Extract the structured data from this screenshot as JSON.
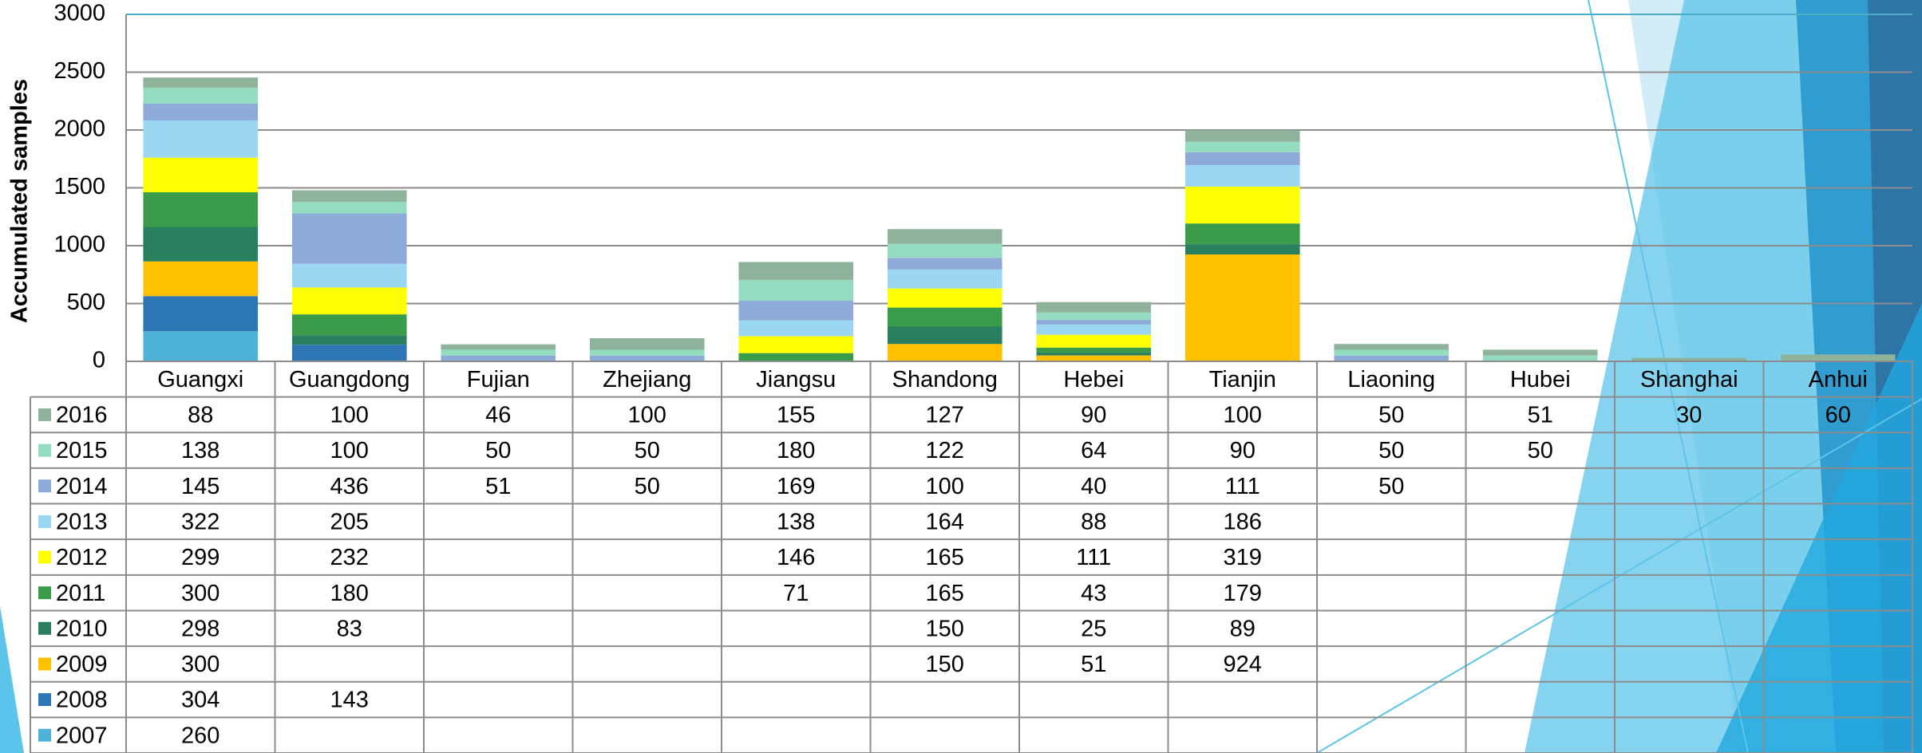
{
  "chart_data": {
    "type": "bar",
    "stacked": true,
    "y_label": "Accumulated samples",
    "categories": [
      "Guangxi",
      "Guangdong",
      "Fujian",
      "Zhejiang",
      "Jiangsu",
      "Shandong",
      "Hebei",
      "Tianjin",
      "Liaoning",
      "Hubei",
      "Shanghai",
      "Anhui"
    ],
    "series": [
      {
        "name": "2016",
        "color": "#8fb39a",
        "values": [
          88,
          100,
          46,
          100,
          155,
          127,
          90,
          100,
          50,
          51,
          30,
          60
        ]
      },
      {
        "name": "2015",
        "color": "#93dcc0",
        "values": [
          138,
          100,
          50,
          50,
          180,
          122,
          64,
          90,
          50,
          50,
          null,
          null
        ]
      },
      {
        "name": "2014",
        "color": "#8eaad8",
        "values": [
          145,
          436,
          51,
          50,
          169,
          100,
          40,
          111,
          50,
          null,
          null,
          null
        ]
      },
      {
        "name": "2013",
        "color": "#9bd7f2",
        "values": [
          322,
          205,
          null,
          null,
          138,
          164,
          88,
          186,
          null,
          null,
          null,
          null
        ]
      },
      {
        "name": "2012",
        "color": "#ffff00",
        "values": [
          299,
          232,
          null,
          null,
          146,
          165,
          111,
          319,
          null,
          null,
          null,
          null
        ]
      },
      {
        "name": "2011",
        "color": "#3a9c4a",
        "values": [
          300,
          180,
          null,
          null,
          71,
          165,
          43,
          179,
          null,
          null,
          null,
          null
        ]
      },
      {
        "name": "2010",
        "color": "#2a7f5e",
        "values": [
          298,
          83,
          null,
          null,
          null,
          150,
          25,
          89,
          null,
          null,
          null,
          null
        ]
      },
      {
        "name": "2009",
        "color": "#ffc000",
        "values": [
          300,
          null,
          null,
          null,
          null,
          150,
          51,
          924,
          null,
          null,
          null,
          null
        ]
      },
      {
        "name": "2008",
        "color": "#2e75b6",
        "values": [
          304,
          143,
          null,
          null,
          null,
          null,
          null,
          null,
          null,
          null,
          null,
          null
        ]
      },
      {
        "name": "2007",
        "color": "#4fb3d9",
        "values": [
          260,
          null,
          null,
          null,
          null,
          null,
          null,
          null,
          null,
          null,
          null,
          null
        ]
      }
    ],
    "ylim": [
      0,
      3000
    ],
    "yticks": [
      0,
      500,
      1000,
      1500,
      2000,
      2500,
      3000
    ],
    "grid": true
  }
}
